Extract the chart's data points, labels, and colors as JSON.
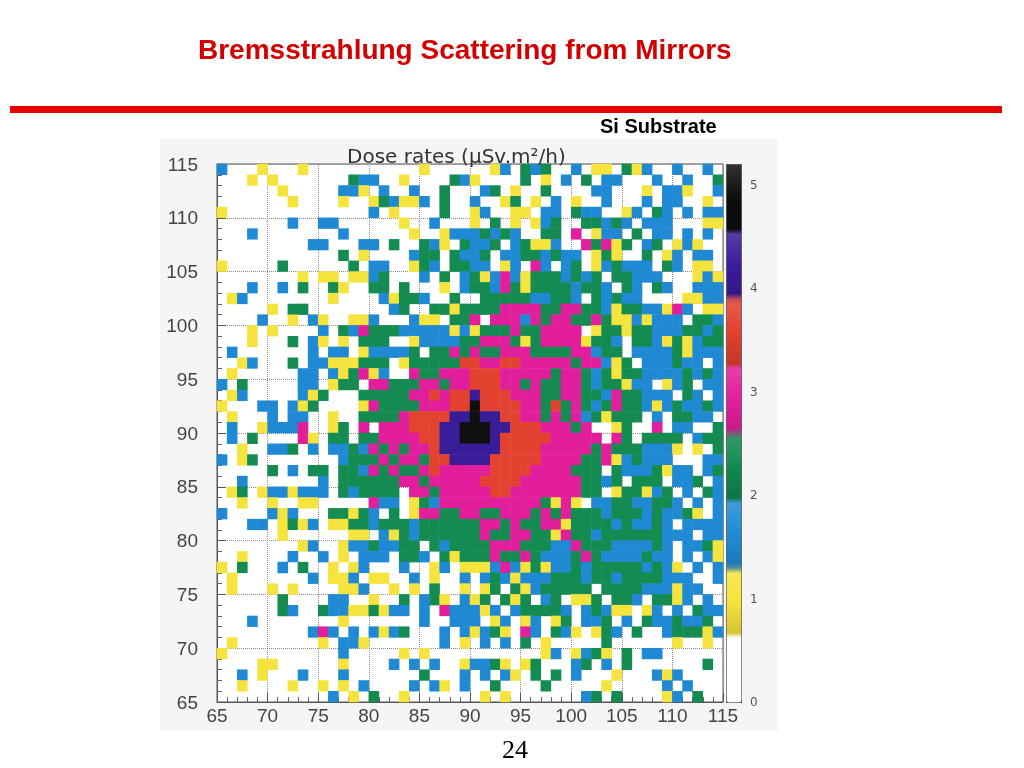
{
  "chart_data": {
    "type": "heatmap",
    "title": "Bremsstrahlung Scattering from Mirrors",
    "subtitle": "Si Substrate",
    "clabel": "Dose rates (μSv.m²/h)",
    "annotations": [
      "24"
    ],
    "xlim": [
      65,
      115
    ],
    "ylim": [
      65,
      115
    ],
    "xticks": [
      65,
      70,
      75,
      80,
      85,
      90,
      95,
      100,
      105,
      110,
      115
    ],
    "yticks": [
      65,
      70,
      75,
      80,
      85,
      90,
      95,
      100,
      105,
      110,
      115
    ],
    "clim": [
      0,
      5.2
    ],
    "cticks": [
      0,
      1,
      2,
      3,
      4,
      5
    ],
    "colors": [
      "#ffffff",
      "#f6e43c",
      "#1f8bd6",
      "#118a4f",
      "#e41e9e",
      "#e4402e",
      "#3a1c9a",
      "#0d0d0d"
    ],
    "grid": true,
    "cells": [
      [
        1.6,
        null,
        null,
        null,
        1,
        null,
        null,
        null,
        1,
        null,
        null,
        null,
        null,
        null,
        null,
        null,
        null,
        null,
        null,
        null,
        1,
        null,
        null,
        null,
        null,
        null,
        null,
        1,
        1.6,
        null,
        2.3,
        1.6,
        2.3,
        null,
        null,
        1.6,
        null,
        1,
        1,
        null,
        2.3,
        1,
        1.6,
        null,
        null,
        1.6,
        null,
        null,
        1.6,
        null
      ],
      [
        null,
        null,
        null,
        1,
        null,
        1,
        null,
        null,
        null,
        null,
        null,
        null,
        null,
        2.3,
        1.6,
        1.6,
        null,
        null,
        1,
        null,
        null,
        null,
        null,
        2.3,
        1.6,
        1,
        null,
        null,
        null,
        null,
        2.3,
        null,
        1,
        null,
        1.6,
        null,
        2.3,
        null,
        1.6,
        1.6,
        null,
        null,
        null,
        1.6,
        null,
        null,
        1.6,
        null,
        null,
        2.3
      ],
      [
        null,
        null,
        null,
        null,
        null,
        null,
        1,
        null,
        null,
        null,
        null,
        null,
        1.6,
        1.6,
        1,
        null,
        1.6,
        null,
        null,
        1.6,
        null,
        null,
        2.3,
        null,
        null,
        null,
        1.6,
        2.3,
        null,
        1,
        null,
        null,
        2.3,
        null,
        null,
        null,
        null,
        1.6,
        1.6,
        null,
        null,
        null,
        1,
        null,
        1.6,
        1.6,
        1,
        null,
        null,
        1.6
      ],
      [
        null,
        null,
        null,
        null,
        null,
        null,
        null,
        1,
        null,
        null,
        null,
        null,
        1,
        null,
        null,
        1,
        2.3,
        1.6,
        1,
        1,
        1.6,
        null,
        2.3,
        null,
        null,
        1.6,
        null,
        null,
        1,
        2.3,
        null,
        1,
        null,
        1.6,
        null,
        1,
        null,
        null,
        1.6,
        null,
        null,
        null,
        1.6,
        null,
        1.6,
        1.6,
        null,
        null,
        1,
        null
      ],
      [
        1,
        null,
        null,
        null,
        null,
        null,
        null,
        null,
        null,
        null,
        null,
        null,
        null,
        null,
        null,
        1.6,
        null,
        1,
        null,
        null,
        null,
        null,
        2.3,
        null,
        null,
        1,
        1.6,
        null,
        null,
        1,
        1,
        null,
        1.6,
        1.6,
        null,
        2.3,
        1.6,
        1.6,
        null,
        null,
        1,
        1.6,
        null,
        2.3,
        1.6,
        null,
        1.6,
        null,
        1.6,
        1.6
      ],
      [
        null,
        null,
        null,
        null,
        null,
        null,
        null,
        1.6,
        null,
        null,
        1.6,
        1.6,
        null,
        null,
        null,
        null,
        null,
        null,
        1,
        null,
        null,
        1.6,
        null,
        null,
        null,
        1,
        null,
        2.3,
        null,
        1,
        null,
        1,
        1.6,
        2.3,
        null,
        null,
        2.3,
        2.3,
        1.6,
        2.3,
        1.6,
        null,
        1.6,
        1.6,
        1.6,
        null,
        null,
        null,
        1,
        1
      ],
      [
        null,
        null,
        null,
        1.6,
        null,
        null,
        null,
        null,
        null,
        null,
        null,
        null,
        1.6,
        null,
        null,
        null,
        null,
        null,
        null,
        1,
        null,
        null,
        1,
        1.6,
        1.6,
        1.6,
        2.3,
        1.6,
        2.3,
        1.6,
        null,
        null,
        2.3,
        2.3,
        null,
        2.9,
        null,
        1,
        1.6,
        1.6,
        null,
        2.3,
        null,
        1.6,
        1.6,
        null,
        1.6,
        null,
        1.6,
        null
      ],
      [
        null,
        null,
        null,
        null,
        null,
        null,
        null,
        null,
        null,
        1.6,
        1.6,
        null,
        null,
        null,
        1.6,
        1.6,
        null,
        2.3,
        null,
        null,
        2.3,
        1.6,
        1,
        null,
        2.3,
        1.6,
        1.6,
        2.3,
        null,
        1.6,
        2.3,
        1,
        1,
        1.6,
        null,
        null,
        2.9,
        2.3,
        2.9,
        1,
        2.3,
        null,
        1.6,
        2.3,
        null,
        1,
        1.6,
        1,
        null,
        null
      ],
      [
        null,
        null,
        null,
        null,
        null,
        null,
        null,
        null,
        null,
        null,
        null,
        null,
        2.3,
        null,
        1,
        null,
        null,
        null,
        null,
        1.6,
        2.3,
        2.3,
        null,
        2.3,
        1.6,
        1.6,
        2.3,
        null,
        1.6,
        1.6,
        2.3,
        2.3,
        1.6,
        2.3,
        1.6,
        1.6,
        null,
        1,
        2.3,
        1,
        null,
        null,
        2.3,
        null,
        1,
        1.6,
        null,
        1.6,
        1.6,
        null
      ],
      [
        1,
        null,
        null,
        null,
        null,
        null,
        2.3,
        null,
        null,
        null,
        null,
        null,
        null,
        2.3,
        null,
        1.6,
        1.6,
        null,
        null,
        1,
        2.3,
        1.6,
        null,
        2.3,
        2.3,
        1.6,
        1.6,
        null,
        1,
        1.6,
        null,
        2.9,
        1.6,
        null,
        1.6,
        2.3,
        null,
        1,
        1.6,
        2.3,
        1.6,
        1.6,
        1.6,
        null,
        2.3,
        1.6,
        null,
        1,
        1,
        null
      ],
      [
        null,
        null,
        null,
        null,
        null,
        null,
        null,
        null,
        1,
        null,
        1,
        1,
        null,
        1,
        1,
        1.6,
        2.3,
        null,
        null,
        null,
        1.6,
        null,
        2.3,
        null,
        1.6,
        2.3,
        1,
        1.6,
        2.9,
        1.6,
        1,
        2.3,
        2.3,
        2.3,
        1.6,
        2.3,
        1.6,
        2.3,
        null,
        2.3,
        2.3,
        1.6,
        1.6,
        1.6,
        null,
        null,
        null,
        1,
        1.6,
        1
      ],
      [
        null,
        null,
        null,
        1.6,
        null,
        null,
        1.6,
        null,
        2.3,
        null,
        null,
        2.3,
        1,
        null,
        null,
        2.3,
        2.3,
        null,
        2.3,
        null,
        null,
        null,
        1,
        null,
        1.6,
        2.3,
        2.3,
        1.6,
        2.9,
        2.3,
        1,
        2.3,
        2.3,
        2.3,
        2.3,
        1.6,
        2.3,
        2.3,
        1.6,
        null,
        2.3,
        1.6,
        null,
        2.3,
        1.6,
        null,
        null,
        1.6,
        1.6,
        1.6
      ],
      [
        null,
        1,
        1.6,
        null,
        null,
        null,
        null,
        null,
        null,
        null,
        null,
        1,
        null,
        null,
        null,
        null,
        1.6,
        1,
        2.3,
        2.3,
        1.6,
        null,
        null,
        2.3,
        null,
        null,
        2.3,
        2.3,
        2.3,
        2.3,
        2.3,
        1.6,
        1.6,
        2.3,
        2.3,
        1.6,
        null,
        2.3,
        1.6,
        2.3,
        1.6,
        1.6,
        null,
        null,
        null,
        null,
        1,
        1,
        1.6,
        1.6
      ],
      [
        null,
        null,
        null,
        null,
        null,
        1,
        null,
        2.3,
        2.3,
        null,
        null,
        null,
        null,
        null,
        null,
        null,
        null,
        1.6,
        2.3,
        null,
        null,
        2.3,
        2.3,
        1,
        2.3,
        2.3,
        2.3,
        2.3,
        2.9,
        2.9,
        2.9,
        2.9,
        2.3,
        2.3,
        2.9,
        2.9,
        2.3,
        2.3,
        1.6,
        1,
        2.3,
        2.3,
        1.6,
        1.6,
        1,
        2.9,
        1.6,
        null,
        1,
        1
      ],
      [
        null,
        null,
        null,
        null,
        1.6,
        null,
        null,
        1,
        null,
        1.6,
        1,
        null,
        null,
        1,
        1,
        1.6,
        null,
        null,
        null,
        1.6,
        1,
        1,
        null,
        2.3,
        2.3,
        2.9,
        null,
        2.9,
        2.9,
        2.9,
        1.6,
        2.9,
        2.3,
        2.9,
        2.9,
        2.3,
        2.3,
        2.9,
        2.3,
        1,
        1,
        1.6,
        1,
        1.6,
        1.6,
        1.6,
        null,
        2.3,
        2.3,
        1.6
      ],
      [
        null,
        null,
        null,
        1,
        null,
        1,
        null,
        null,
        null,
        null,
        1.6,
        null,
        2.3,
        1.6,
        2.9,
        2.3,
        2.3,
        2.3,
        1.6,
        1.6,
        1.6,
        1.6,
        1.6,
        1,
        1.6,
        1,
        2.3,
        2.3,
        2.3,
        2.9,
        2.3,
        2.3,
        2.9,
        2.9,
        2.9,
        2.9,
        null,
        1,
        2.3,
        2.3,
        1,
        2.3,
        2.3,
        1.6,
        1.6,
        1.6,
        2.3,
        2.3,
        1.6,
        2.3
      ],
      [
        null,
        null,
        null,
        1,
        null,
        null,
        null,
        2.3,
        null,
        1.6,
        1,
        null,
        1,
        null,
        2.3,
        2.3,
        2.3,
        null,
        null,
        1,
        1.6,
        1.6,
        1.6,
        1.6,
        2.3,
        2.3,
        2.9,
        2.9,
        2.9,
        2.3,
        1,
        2.3,
        2.9,
        2.9,
        2.9,
        2.9,
        1,
        2.3,
        2.3,
        1.6,
        null,
        2.3,
        2.3,
        1.6,
        1,
        2.3,
        1,
        1.6,
        2.3,
        2.3
      ],
      [
        null,
        1.6,
        null,
        null,
        null,
        null,
        null,
        null,
        null,
        1.6,
        null,
        1.6,
        1.6,
        null,
        1,
        1.6,
        1.6,
        1.6,
        1.6,
        2.3,
        null,
        2.3,
        2.3,
        2.9,
        2.3,
        2.9,
        2.3,
        2.3,
        2.9,
        2.9,
        2.9,
        2.3,
        2.3,
        2.3,
        2.3,
        2.9,
        2.9,
        1.6,
        2.3,
        2.3,
        null,
        1.6,
        1.6,
        1.6,
        1.6,
        2.3,
        1,
        1.6,
        1.6,
        1.6
      ],
      [
        null,
        null,
        1,
        1.6,
        null,
        null,
        null,
        2.3,
        null,
        1.6,
        1.6,
        1,
        1,
        1,
        2.3,
        2.3,
        2.3,
        null,
        1,
        2.3,
        2.3,
        2.3,
        2.3,
        2.3,
        3.6,
        3.6,
        2.9,
        2.9,
        3.6,
        3.6,
        2.9,
        2.9,
        2.9,
        2.9,
        2.9,
        2.3,
        2.9,
        2.9,
        1.6,
        1,
        2.3,
        null,
        1.6,
        1.6,
        1.6,
        2.3,
        1.6,
        1.6,
        null,
        1.6
      ],
      [
        null,
        1,
        null,
        null,
        null,
        null,
        null,
        null,
        1.6,
        1.6,
        null,
        1.6,
        1,
        2.3,
        2.9,
        1,
        1.6,
        null,
        null,
        2.9,
        2.3,
        2.3,
        2.9,
        2.9,
        2.9,
        3.6,
        3.6,
        3.6,
        2.9,
        2.9,
        2.9,
        2.9,
        2.9,
        2.3,
        2.9,
        2.9,
        2.3,
        1.6,
        2.3,
        1,
        2.3,
        2.3,
        1.6,
        1.6,
        1.6,
        1.6,
        2.3,
        1.6,
        2.3,
        1.6
      ],
      [
        1.6,
        null,
        2.3,
        null,
        null,
        null,
        null,
        null,
        1.6,
        1.6,
        null,
        1,
        2.3,
        2.3,
        null,
        2.9,
        2.9,
        2.3,
        2.3,
        2.3,
        2.9,
        2.9,
        2.3,
        2.9,
        2.9,
        3.6,
        3.6,
        3.6,
        2.9,
        2.9,
        2.3,
        2.9,
        2.3,
        2.3,
        2.9,
        2.9,
        2.3,
        1.6,
        2.3,
        2.3,
        1,
        1.6,
        1.6,
        null,
        1,
        1.6,
        2.3,
        null,
        1.6,
        1.6
      ],
      [
        null,
        1,
        1.6,
        null,
        null,
        null,
        null,
        null,
        1.6,
        1,
        2.3,
        null,
        null,
        null,
        2.3,
        2.3,
        2.3,
        2.3,
        2.3,
        2.9,
        2.9,
        3.6,
        2.9,
        3.6,
        3.6,
        4.2,
        3.6,
        3.6,
        3.6,
        2.9,
        2.9,
        2.9,
        2.3,
        2.3,
        2.9,
        2.9,
        2.3,
        2.3,
        1.6,
        2.9,
        2.3,
        2.3,
        1.6,
        1.6,
        1.6,
        null,
        2.3,
        1.6,
        null,
        1.6
      ],
      [
        1,
        null,
        null,
        null,
        1.6,
        1.6,
        null,
        1.6,
        1,
        2.3,
        null,
        null,
        null,
        null,
        1,
        2.9,
        2.3,
        2.3,
        2.3,
        2.3,
        2.9,
        2.9,
        2.9,
        3.6,
        3.6,
        4.9,
        3.6,
        3.6,
        3.6,
        3.6,
        2.9,
        2.9,
        2.3,
        3.6,
        2.3,
        2.9,
        2.3,
        1.6,
        2.3,
        2.9,
        2.3,
        2.3,
        1.6,
        1,
        1.6,
        2.3,
        1.6,
        1.6,
        2.3,
        1.6
      ],
      [
        null,
        1,
        null,
        null,
        null,
        1.6,
        null,
        1.6,
        1.6,
        null,
        null,
        1,
        null,
        null,
        2.3,
        2.3,
        2.3,
        2.3,
        2.9,
        3.6,
        3.6,
        3.6,
        3.6,
        4.2,
        4.2,
        4.9,
        4.2,
        4.2,
        3.6,
        3.6,
        2.9,
        2.9,
        2.3,
        2.9,
        2.3,
        2.9,
        1.6,
        2.3,
        1,
        2.3,
        2.3,
        2.3,
        null,
        1.6,
        null,
        2.3,
        2.3,
        1.6,
        1.6,
        null
      ],
      [
        null,
        1.6,
        null,
        null,
        1,
        1.6,
        1.6,
        1.6,
        2.9,
        null,
        null,
        1,
        2.3,
        null,
        2.9,
        null,
        2.9,
        2.9,
        2.9,
        3.6,
        3.6,
        3.6,
        4.2,
        4.2,
        4.9,
        4.9,
        4.9,
        4.2,
        4.2,
        3.6,
        3.6,
        3.6,
        2.9,
        2.9,
        2.9,
        2.3,
        2.9,
        null,
        null,
        1,
        2.3,
        null,
        null,
        2.9,
        null,
        1.6,
        1.6,
        null,
        null,
        2.3
      ],
      [
        null,
        1.6,
        null,
        2.3,
        null,
        null,
        null,
        null,
        2.9,
        1,
        null,
        2.3,
        2.3,
        null,
        2.3,
        2.3,
        2.9,
        2.9,
        2.9,
        2.9,
        3.6,
        3.6,
        4.2,
        4.2,
        4.9,
        4.9,
        4.9,
        4.2,
        3.6,
        3.6,
        3.6,
        3.6,
        3.6,
        2.9,
        2.9,
        2.9,
        2.9,
        2.9,
        null,
        2.9,
        2.3,
        null,
        2.3,
        2.3,
        2.3,
        2.3,
        null,
        1.6,
        2.3,
        2.3
      ],
      [
        null,
        null,
        1,
        null,
        null,
        1.6,
        1.6,
        2.3,
        null,
        1.6,
        null,
        1.6,
        1.6,
        2.3,
        1.6,
        2.9,
        2.3,
        2.9,
        2.3,
        2.9,
        2.9,
        3.6,
        4.2,
        4.2,
        4.2,
        4.2,
        4.2,
        4.2,
        3.6,
        3.6,
        3.6,
        3.6,
        2.9,
        2.9,
        2.9,
        2.9,
        2.9,
        2.3,
        2.9,
        2.3,
        2.3,
        2.3,
        1.6,
        1.6,
        1.6,
        1,
        null,
        1,
        null,
        2.3
      ],
      [
        1.6,
        null,
        1,
        2.3,
        null,
        null,
        null,
        null,
        null,
        null,
        null,
        null,
        1.6,
        2.3,
        2.3,
        2.3,
        2.9,
        2.3,
        2.9,
        2.9,
        2.3,
        3.6,
        3.6,
        4.2,
        4.2,
        4.2,
        4.2,
        3.6,
        3.6,
        3.6,
        3.6,
        3.6,
        2.9,
        2.9,
        2.9,
        2.9,
        2.3,
        2.3,
        2.9,
        1,
        1.6,
        2.3,
        1.6,
        1.6,
        1.6,
        null,
        null,
        null,
        1.6,
        1.6
      ],
      [
        null,
        null,
        null,
        null,
        null,
        2.3,
        null,
        1.6,
        null,
        2.3,
        2.3,
        null,
        2.3,
        2.3,
        1.6,
        2.9,
        2.3,
        2.9,
        2.3,
        2.3,
        2.9,
        3.6,
        2.9,
        2.9,
        2.9,
        2.9,
        2.9,
        3.6,
        3.6,
        3.6,
        3.6,
        2.9,
        2.9,
        2.9,
        2.9,
        2.3,
        2.3,
        2.3,
        null,
        2.3,
        1.6,
        1.6,
        1.6,
        2.3,
        1,
        1.6,
        1.6,
        null,
        1.6,
        2.3
      ],
      [
        null,
        null,
        1.6,
        null,
        null,
        null,
        null,
        null,
        null,
        null,
        1.6,
        null,
        2.3,
        2.3,
        2.3,
        2.3,
        2.3,
        2.3,
        2.9,
        2.9,
        2.3,
        2.9,
        2.9,
        2.9,
        2.9,
        2.9,
        3.6,
        3.6,
        3.6,
        3.6,
        2.9,
        2.9,
        2.9,
        2.9,
        2.9,
        2.9,
        2.3,
        2.3,
        1.6,
        2.3,
        null,
        2.3,
        2.3,
        2.3,
        null,
        1.6,
        1.6,
        2.3,
        null,
        1.6
      ],
      [
        null,
        1,
        2.3,
        null,
        1,
        1.6,
        1.6,
        1,
        1.6,
        1.6,
        1.6,
        null,
        2.3,
        1.6,
        2.3,
        2.3,
        2.3,
        2.3,
        null,
        2.9,
        2.9,
        2.3,
        2.9,
        2.9,
        2.9,
        2.9,
        2.9,
        3.6,
        3.6,
        2.9,
        2.9,
        2.9,
        2.9,
        2.9,
        2.9,
        2.9,
        2.3,
        2.3,
        null,
        1,
        2.3,
        2.3,
        1,
        1.6,
        2.3,
        null,
        1.6,
        null,
        2.3,
        1.6
      ],
      [
        null,
        null,
        1,
        null,
        null,
        1,
        null,
        null,
        1,
        1,
        null,
        null,
        null,
        null,
        null,
        2.9,
        1.6,
        1.6,
        null,
        1,
        2.3,
        1.6,
        2.9,
        2.9,
        2.9,
        2.9,
        2.9,
        2.9,
        2.9,
        2.9,
        2.9,
        2.9,
        2.3,
        1,
        2.9,
        1,
        null,
        1.6,
        1.6,
        2.3,
        2.3,
        1.6,
        1.6,
        2.3,
        2.3,
        1.6,
        null,
        1.6,
        null,
        1.6
      ],
      [
        1.6,
        null,
        null,
        null,
        null,
        1.6,
        1,
        1.6,
        null,
        null,
        null,
        2.3,
        2.3,
        1,
        2.3,
        1.6,
        null,
        2.3,
        null,
        1,
        2.9,
        2.9,
        2.3,
        2.3,
        2.9,
        2.9,
        2.3,
        2.3,
        2.9,
        2.9,
        2.9,
        2.3,
        2.9,
        2.3,
        2.9,
        2.3,
        2.3,
        2.3,
        1.6,
        2.3,
        2.3,
        2.3,
        1.6,
        2.3,
        1.6,
        1.6,
        2.3,
        1,
        null,
        1.6
      ],
      [
        null,
        null,
        null,
        1.6,
        1.6,
        null,
        1,
        2.3,
        1,
        1.6,
        null,
        1,
        1,
        2.3,
        2.3,
        1.6,
        2.3,
        2.3,
        2.3,
        1.6,
        2.3,
        2.3,
        2.3,
        2.3,
        2.3,
        2.3,
        2.9,
        2.9,
        2.3,
        2.9,
        2.3,
        2.3,
        2.9,
        2.9,
        1,
        2.3,
        2.3,
        2.3,
        2.3,
        1.6,
        2.3,
        1.6,
        1.6,
        2.3,
        1.6,
        null,
        1.6,
        1.6,
        1.6,
        1.6
      ],
      [
        null,
        null,
        null,
        null,
        null,
        null,
        1,
        null,
        null,
        null,
        null,
        null,
        null,
        1,
        1,
        null,
        1.6,
        1,
        2.3,
        1.6,
        2.3,
        2.3,
        2.3,
        2.3,
        2.3,
        2.3,
        2.9,
        2.3,
        2.3,
        2.9,
        2.9,
        2.3,
        2.3,
        1,
        2.9,
        2.3,
        2.3,
        1.6,
        2.3,
        2.3,
        2.3,
        2.3,
        2.3,
        2.3,
        1.6,
        1.6,
        1.6,
        null,
        1.6,
        1.6
      ],
      [
        null,
        null,
        null,
        null,
        null,
        null,
        null,
        null,
        1,
        1.6,
        null,
        null,
        1,
        1.6,
        1.6,
        2.3,
        1.6,
        1.6,
        2.3,
        2.3,
        null,
        2.3,
        1.6,
        2.3,
        2.3,
        2.3,
        2.3,
        2.9,
        2.9,
        2.9,
        2.3,
        2.3,
        2.3,
        1.6,
        1.6,
        2.9,
        2.3,
        2.3,
        2.3,
        1.6,
        1.6,
        1.6,
        1.6,
        2.3,
        1.6,
        null,
        1.6,
        1.6,
        2.3,
        1
      ],
      [
        null,
        null,
        1,
        null,
        null,
        null,
        null,
        1.6,
        null,
        null,
        1.6,
        null,
        1,
        null,
        1.6,
        1.6,
        1.6,
        null,
        2.3,
        2.3,
        1.6,
        null,
        2.3,
        1,
        2.3,
        2.3,
        2.3,
        2.9,
        2.3,
        2.3,
        2.9,
        2.3,
        1.6,
        1.6,
        1.6,
        2.3,
        2.9,
        2.3,
        1.6,
        1.6,
        1.6,
        1.6,
        2.3,
        1.6,
        1.6,
        null,
        1.6,
        null,
        1.6,
        1
      ],
      [
        1,
        null,
        2.3,
        null,
        null,
        null,
        1.6,
        null,
        2.3,
        null,
        null,
        1,
        null,
        1,
        1.6,
        null,
        null,
        null,
        1.6,
        null,
        null,
        1,
        1.6,
        null,
        1,
        1,
        1,
        1.6,
        2.9,
        1.6,
        1,
        2.3,
        1,
        1.6,
        1.6,
        2.3,
        1.6,
        2.3,
        2.3,
        2.3,
        2.3,
        2.3,
        1.6,
        2.3,
        1.6,
        1,
        null,
        1.6,
        null,
        1.6
      ],
      [
        null,
        1,
        null,
        null,
        null,
        null,
        null,
        null,
        null,
        1.6,
        null,
        1,
        1,
        1.6,
        null,
        1,
        1,
        null,
        null,
        1.6,
        null,
        1,
        null,
        null,
        1.6,
        null,
        1.6,
        2.3,
        1.6,
        1,
        1.6,
        1.6,
        1.6,
        2.3,
        2.3,
        2.3,
        1.6,
        2.3,
        2.3,
        1.6,
        2.3,
        2.3,
        2.3,
        2.3,
        1.6,
        1.6,
        1.6,
        null,
        null,
        1.6
      ],
      [
        null,
        1,
        null,
        null,
        null,
        1,
        null,
        1,
        null,
        null,
        null,
        null,
        1,
        1,
        1.6,
        null,
        null,
        1,
        null,
        1,
        null,
        2.3,
        null,
        null,
        1,
        null,
        1,
        2.3,
        null,
        2.3,
        1,
        1.6,
        2.3,
        2.3,
        2.3,
        2.3,
        2.3,
        null,
        2.3,
        2.3,
        2.3,
        2.3,
        1.6,
        1.6,
        1.6,
        1,
        1.6,
        1.6,
        null,
        null
      ],
      [
        null,
        null,
        null,
        null,
        null,
        null,
        2.3,
        null,
        null,
        null,
        null,
        1.6,
        1.6,
        null,
        null,
        1,
        null,
        null,
        2.3,
        null,
        1.6,
        2.3,
        1,
        null,
        1.6,
        1,
        2.3,
        null,
        2.3,
        1,
        2.3,
        null,
        1.6,
        2.3,
        null,
        1,
        1,
        2.3,
        null,
        2.3,
        2.3,
        1.6,
        null,
        2.3,
        2.3,
        1,
        1.6,
        null,
        1.6,
        null
      ],
      [
        null,
        null,
        null,
        null,
        null,
        null,
        2.3,
        1.6,
        null,
        null,
        2.3,
        1.6,
        1.6,
        1,
        1,
        2.3,
        1,
        1.6,
        1.6,
        null,
        1.6,
        null,
        2.9,
        1.6,
        1.6,
        1.6,
        1,
        1.6,
        null,
        1.6,
        2.3,
        2.3,
        2.3,
        2.3,
        1.6,
        null,
        1.6,
        2.3,
        1.6,
        1,
        1,
        null,
        1,
        1.6,
        null,
        1.6,
        null,
        2.3,
        1.6,
        1.6
      ],
      [
        null,
        null,
        null,
        1.6,
        null,
        null,
        null,
        null,
        null,
        null,
        null,
        null,
        1,
        null,
        null,
        null,
        null,
        null,
        null,
        null,
        1.6,
        null,
        null,
        1.6,
        1.6,
        1.6,
        null,
        1,
        1.6,
        null,
        1,
        1.6,
        null,
        1,
        2.3,
        null,
        1.6,
        1.6,
        2.3,
        null,
        1.6,
        null,
        2.3,
        1.6,
        1.6,
        2.3,
        1.6,
        1.6,
        2.3,
        null
      ],
      [
        null,
        null,
        null,
        null,
        null,
        null,
        null,
        null,
        null,
        1.6,
        2.9,
        1.6,
        null,
        1.6,
        null,
        1.6,
        1,
        1.6,
        2.3,
        null,
        null,
        null,
        1.6,
        null,
        1.6,
        1,
        1.6,
        2.3,
        1,
        null,
        2.9,
        1.6,
        null,
        2.3,
        1.6,
        1,
        null,
        1,
        2.3,
        1.6,
        null,
        2.3,
        null,
        null,
        1.6,
        2.3,
        2.3,
        2.3,
        1,
        1.6
      ],
      [
        null,
        1,
        null,
        null,
        null,
        null,
        null,
        null,
        null,
        null,
        1,
        null,
        1.6,
        1.6,
        1,
        null,
        null,
        null,
        null,
        null,
        null,
        null,
        1.6,
        null,
        1,
        null,
        1.6,
        null,
        1.6,
        null,
        2.3,
        null,
        1,
        null,
        null,
        null,
        null,
        null,
        2.3,
        null,
        null,
        null,
        null,
        null,
        null,
        1,
        null,
        null,
        1,
        null
      ],
      [
        1,
        null,
        null,
        null,
        null,
        null,
        null,
        null,
        null,
        null,
        null,
        null,
        1.6,
        null,
        null,
        null,
        null,
        null,
        1,
        null,
        1,
        null,
        null,
        null,
        null,
        null,
        null,
        null,
        null,
        null,
        null,
        null,
        1,
        1.6,
        null,
        1,
        1.6,
        2.3,
        1,
        null,
        2.3,
        null,
        1.6,
        1.6,
        null,
        null,
        null,
        null,
        null,
        null
      ],
      [
        null,
        null,
        null,
        null,
        1,
        1,
        null,
        null,
        null,
        null,
        null,
        null,
        1,
        null,
        null,
        null,
        null,
        1.6,
        null,
        1.6,
        null,
        1.6,
        null,
        null,
        1,
        1.6,
        1.6,
        2.3,
        1,
        null,
        1,
        2.3,
        null,
        null,
        null,
        1.6,
        2.3,
        null,
        1.6,
        null,
        2.3,
        null,
        null,
        null,
        null,
        null,
        null,
        null,
        2.3,
        null
      ],
      [
        null,
        null,
        1.6,
        null,
        1,
        null,
        null,
        null,
        1.6,
        null,
        null,
        null,
        1.6,
        null,
        null,
        null,
        null,
        null,
        null,
        null,
        2.3,
        null,
        null,
        null,
        1.6,
        null,
        1.6,
        null,
        1.6,
        1,
        null,
        2.3,
        null,
        2.3,
        null,
        1.6,
        null,
        null,
        null,
        1,
        null,
        null,
        null,
        1.6,
        1,
        1.6,
        null,
        null,
        null,
        null
      ],
      [
        null,
        null,
        1,
        null,
        null,
        null,
        null,
        1,
        null,
        null,
        1,
        null,
        1,
        null,
        1.6,
        null,
        null,
        null,
        null,
        1.6,
        null,
        1.6,
        1,
        null,
        1.6,
        null,
        null,
        2.3,
        null,
        null,
        null,
        null,
        2.3,
        null,
        null,
        null,
        null,
        null,
        1,
        null,
        null,
        null,
        null,
        null,
        1.6,
        null,
        1.6,
        null,
        null,
        null
      ],
      [
        null,
        null,
        null,
        null,
        null,
        null,
        null,
        null,
        null,
        null,
        null,
        1.6,
        null,
        1,
        null,
        2.3,
        null,
        null,
        1,
        null,
        null,
        null,
        null,
        null,
        null,
        null,
        1,
        null,
        1,
        null,
        null,
        null,
        null,
        null,
        null,
        null,
        1.6,
        2.3,
        null,
        2.3,
        null,
        null,
        null,
        null,
        1,
        1.6,
        null,
        2.3,
        null,
        null
      ]
    ]
  }
}
